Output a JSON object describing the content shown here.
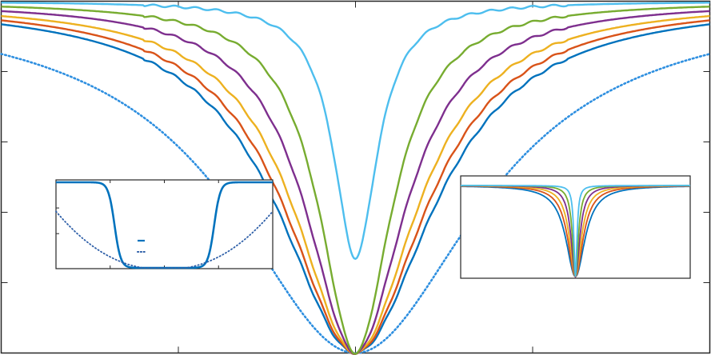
{
  "chart_data": [
    {
      "id": "main",
      "type": "line",
      "xlabel": "",
      "ylabel": "",
      "xlim": [
        -1,
        1
      ],
      "ylim": [
        0,
        1
      ],
      "grid": false,
      "x_ticks": [
        -0.5,
        0,
        0.5
      ],
      "y_ticks": [
        0.2,
        0.4,
        0.6,
        0.8
      ],
      "series": [
        {
          "color": "#2E8FE0",
          "style": "dotted",
          "width": 0.42
        },
        {
          "color": "#0072BD",
          "style": "solid",
          "width": 0.265
        },
        {
          "color": "#D95319",
          "style": "solid",
          "width": 0.24
        },
        {
          "color": "#EDB120",
          "style": "solid",
          "width": 0.21
        },
        {
          "color": "#7E2F8E",
          "style": "solid",
          "width": 0.17
        },
        {
          "color": "#77AC30",
          "style": "solid",
          "width": 0.125
        },
        {
          "color": "#4DBEEE",
          "style": "solid",
          "width": 0.075,
          "min": 0.27
        }
      ]
    },
    {
      "id": "inset-left",
      "type": "line",
      "xlim": [
        0,
        1
      ],
      "ylim": [
        0,
        1
      ],
      "grid": false,
      "legend_markers": true,
      "series": [
        {
          "color": "#0072BD",
          "style": "solid",
          "shape": "flat-well"
        },
        {
          "color": "#2E5FA8",
          "style": "dotted",
          "shape": "broad-well"
        }
      ]
    },
    {
      "id": "inset-right",
      "type": "line",
      "xlim": [
        -1,
        1
      ],
      "ylim": [
        0,
        1
      ],
      "grid": false,
      "series": [
        {
          "color": "#0072BD",
          "width": 0.1
        },
        {
          "color": "#D95319",
          "width": 0.08
        },
        {
          "color": "#EDB120",
          "width": 0.062
        },
        {
          "color": "#7E2F8E",
          "width": 0.045
        },
        {
          "color": "#77AC30",
          "width": 0.03
        },
        {
          "color": "#4DBEEE",
          "width": 0.016
        }
      ]
    }
  ]
}
